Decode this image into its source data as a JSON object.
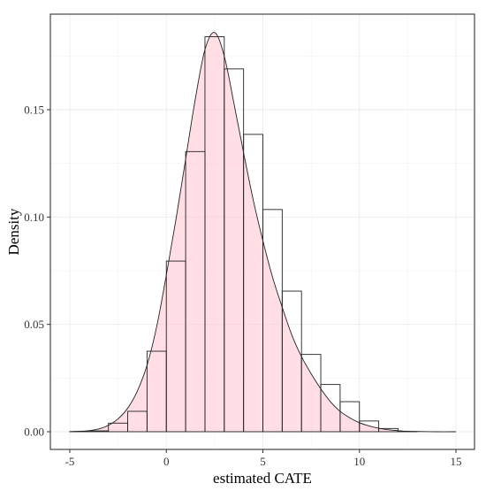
{
  "chart_data": {
    "type": "histogram",
    "title": "",
    "xlabel": "estimated CATE",
    "ylabel": "Density",
    "xlim": [
      -5,
      15
    ],
    "ylim": [
      0,
      0.19
    ],
    "x_ticks": [
      -5,
      0,
      5,
      10,
      15
    ],
    "x_tick_labels": [
      "-5",
      "0",
      "5",
      "10",
      "15"
    ],
    "y_ticks": [
      0.0,
      0.05,
      0.1,
      0.15
    ],
    "y_tick_labels": [
      "0.00",
      "0.05",
      "0.10",
      "0.15"
    ],
    "grid": true,
    "bin_width": 1,
    "bins": [
      {
        "x0": -5,
        "x1": -4,
        "density": 0.0001
      },
      {
        "x0": -4,
        "x1": -3,
        "density": 0.0004
      },
      {
        "x0": -3,
        "x1": -2,
        "density": 0.004
      },
      {
        "x0": -2,
        "x1": -1,
        "density": 0.0095
      },
      {
        "x0": -1,
        "x1": 0,
        "density": 0.0375
      },
      {
        "x0": 0,
        "x1": 1,
        "density": 0.0795
      },
      {
        "x0": 1,
        "x1": 2,
        "density": 0.1305
      },
      {
        "x0": 2,
        "x1": 3,
        "density": 0.184
      },
      {
        "x0": 3,
        "x1": 4,
        "density": 0.169
      },
      {
        "x0": 4,
        "x1": 5,
        "density": 0.1385
      },
      {
        "x0": 5,
        "x1": 6,
        "density": 0.1035
      },
      {
        "x0": 6,
        "x1": 7,
        "density": 0.0655
      },
      {
        "x0": 7,
        "x1": 8,
        "density": 0.036
      },
      {
        "x0": 8,
        "x1": 9,
        "density": 0.022
      },
      {
        "x0": 9,
        "x1": 10,
        "density": 0.014
      },
      {
        "x0": 10,
        "x1": 11,
        "density": 0.005
      },
      {
        "x0": 11,
        "x1": 12,
        "density": 0.0015
      },
      {
        "x0": 12,
        "x1": 13,
        "density": 0.0001
      }
    ],
    "density_curve": {
      "x": [
        -5,
        -4.5,
        -4,
        -3.5,
        -3,
        -2.5,
        -2,
        -1.5,
        -1,
        -0.5,
        0,
        0.5,
        1,
        1.5,
        2,
        2.5,
        3,
        3.5,
        4,
        4.5,
        5,
        5.5,
        6,
        6.5,
        7,
        7.5,
        8,
        8.5,
        9,
        9.5,
        10,
        10.5,
        11,
        11.5,
        12,
        12.5,
        13,
        14,
        15
      ],
      "y": [
        0.0,
        0.0002,
        0.0005,
        0.0013,
        0.003,
        0.006,
        0.011,
        0.019,
        0.031,
        0.049,
        0.073,
        0.099,
        0.127,
        0.155,
        0.178,
        0.186,
        0.175,
        0.153,
        0.13,
        0.108,
        0.089,
        0.072,
        0.058,
        0.045,
        0.035,
        0.027,
        0.02,
        0.014,
        0.0095,
        0.0065,
        0.0042,
        0.0027,
        0.0016,
        0.0009,
        0.0005,
        0.0002,
        0.0001,
        0.0,
        0.0
      ],
      "fill_color": "#ffc0cb",
      "line_color": "#222222"
    }
  }
}
